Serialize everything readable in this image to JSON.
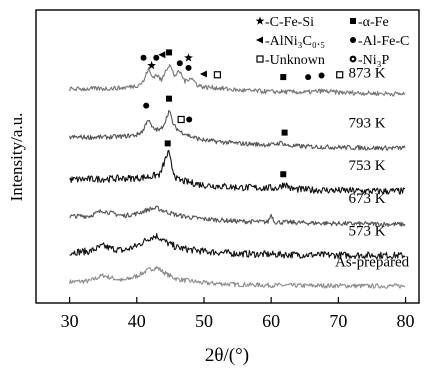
{
  "chart_data": {
    "type": "line",
    "title": "",
    "xlabel": "2θ/(°)",
    "ylabel": "Intensity/a.u.",
    "xlim": [
      25,
      82
    ],
    "xticks": [
      30,
      40,
      50,
      60,
      70,
      80
    ],
    "ylim": [
      0,
      7.6
    ],
    "grid": false,
    "colors": {
      "As-prepared": "#8c8c8c",
      "573 K": "#111111",
      "673 K": "#555555",
      "753 K": "#111111",
      "793 K": "#555555",
      "873 K": "#777777"
    },
    "series": [
      {
        "name": "As-prepared",
        "offset": 0.35,
        "x": [
          30,
          33,
          35,
          36,
          38,
          40,
          42,
          43,
          44.5,
          46,
          48,
          50,
          55,
          60,
          65,
          70,
          75,
          80
        ],
        "y": [
          0.55,
          0.57,
          0.72,
          0.66,
          0.58,
          0.7,
          0.88,
          0.92,
          0.74,
          0.62,
          0.57,
          0.52,
          0.48,
          0.46,
          0.45,
          0.45,
          0.44,
          0.44
        ]
      },
      {
        "name": "573 K",
        "offset": 1.15,
        "x": [
          30,
          33,
          35,
          36,
          38,
          40,
          42,
          43,
          44.5,
          46,
          48,
          50,
          55,
          60,
          65,
          70,
          75,
          80
        ],
        "y": [
          1.32,
          1.34,
          1.48,
          1.42,
          1.36,
          1.48,
          1.7,
          1.74,
          1.56,
          1.44,
          1.38,
          1.34,
          1.28,
          1.26,
          1.25,
          1.24,
          1.24,
          1.23
        ]
      },
      {
        "name": "673 K",
        "offset": 2.0,
        "x": [
          30,
          33,
          35,
          36,
          38,
          40,
          42,
          43,
          44.5,
          46,
          48,
          50,
          55,
          59.5,
          60,
          60.5,
          65,
          70,
          75,
          80
        ],
        "y": [
          2.25,
          2.26,
          2.4,
          2.34,
          2.26,
          2.32,
          2.44,
          2.46,
          2.36,
          2.28,
          2.22,
          2.18,
          2.12,
          2.1,
          2.3,
          2.1,
          2.08,
          2.06,
          2.05,
          2.04
        ]
      },
      {
        "name": "753 K",
        "offset": 2.9,
        "x": [
          30,
          35,
          40,
          42,
          43.5,
          44.2,
          44.7,
          45.3,
          46,
          48,
          50,
          55,
          61,
          62,
          63,
          65,
          70,
          75,
          80
        ],
        "y": [
          3.2,
          3.22,
          3.24,
          3.28,
          3.34,
          3.7,
          3.92,
          3.48,
          3.2,
          3.12,
          3.06,
          3.0,
          2.98,
          3.1,
          2.96,
          2.94,
          2.92,
          2.9,
          2.9
        ]
      },
      {
        "name": "793 K",
        "offset": 4.0,
        "x": [
          30,
          35,
          38,
          40,
          41,
          41.6,
          42.4,
          43.5,
          44.2,
          44.8,
          45.5,
          46.5,
          47.2,
          48,
          50,
          55,
          60,
          61.5,
          62.5,
          65,
          70,
          75,
          80
        ],
        "y": [
          4.3,
          4.3,
          4.32,
          4.36,
          4.48,
          4.78,
          4.52,
          4.48,
          4.7,
          5.0,
          4.6,
          4.44,
          4.4,
          4.32,
          4.22,
          4.14,
          4.1,
          4.16,
          4.08,
          4.06,
          4.04,
          4.02,
          4.02
        ]
      },
      {
        "name": "873 K",
        "offset": 5.2,
        "x": [
          30,
          35,
          38,
          40,
          41,
          41.7,
          42.3,
          43,
          43.7,
          44.3,
          44.9,
          45.6,
          46.4,
          47.2,
          48,
          49,
          50,
          52,
          55,
          60,
          62,
          65,
          67.5,
          70,
          75,
          80
        ],
        "y": [
          5.55,
          5.56,
          5.58,
          5.64,
          5.74,
          6.08,
          5.86,
          5.92,
          5.76,
          6.06,
          6.18,
          5.9,
          6.0,
          5.74,
          5.86,
          5.66,
          5.6,
          5.58,
          5.52,
          5.48,
          5.48,
          5.46,
          5.5,
          5.46,
          5.44,
          5.42
        ]
      }
    ],
    "curve_labels": [
      {
        "text": "As-prepared",
        "x": 69.5,
        "y": 0.95
      },
      {
        "text": "573 K",
        "x": 71.5,
        "y": 1.75
      },
      {
        "text": "673 K",
        "x": 71.5,
        "y": 2.6
      },
      {
        "text": "753 K",
        "x": 71.5,
        "y": 3.45
      },
      {
        "text": "793 K",
        "x": 71.5,
        "y": 4.55
      },
      {
        "text": "873 K",
        "x": 71.5,
        "y": 5.85
      }
    ],
    "phase_legend": [
      {
        "marker": "star",
        "label": "-C-Fe-Si"
      },
      {
        "marker": "square",
        "label": "-α-Fe"
      },
      {
        "marker": "triangle-left",
        "label": "-AlNi₃C₀.₅"
      },
      {
        "marker": "circle",
        "label": "-Al-Fe-C"
      },
      {
        "marker": "square-open",
        "label": "-Unknown"
      },
      {
        "marker": "circle-ring",
        "label": "-Ni₃P"
      }
    ],
    "phase_markers": [
      {
        "marker": "circle",
        "x": 41.0,
        "y": 6.36
      },
      {
        "marker": "star",
        "x": 42.2,
        "y": 6.16
      },
      {
        "marker": "circle",
        "x": 42.9,
        "y": 6.36
      },
      {
        "marker": "triangle-left",
        "x": 43.8,
        "y": 6.44
      },
      {
        "marker": "square",
        "x": 44.8,
        "y": 6.5
      },
      {
        "marker": "circle",
        "x": 46.4,
        "y": 6.22
      },
      {
        "marker": "star",
        "x": 47.7,
        "y": 6.36
      },
      {
        "marker": "circle",
        "x": 47.7,
        "y": 6.1
      },
      {
        "marker": "triangle-left",
        "x": 50.0,
        "y": 5.94
      },
      {
        "marker": "square-open",
        "x": 52.0,
        "y": 5.92
      },
      {
        "marker": "square",
        "x": 61.8,
        "y": 5.86
      },
      {
        "marker": "circle",
        "x": 65.5,
        "y": 5.86
      },
      {
        "marker": "circle",
        "x": 67.5,
        "y": 5.9
      },
      {
        "marker": "square-open",
        "x": 70.2,
        "y": 5.92
      },
      {
        "marker": "circle",
        "x": 41.4,
        "y": 5.12
      },
      {
        "marker": "square",
        "x": 44.8,
        "y": 5.3
      },
      {
        "marker": "square-open",
        "x": 46.6,
        "y": 4.76
      },
      {
        "marker": "circle",
        "x": 47.8,
        "y": 4.76
      },
      {
        "marker": "square",
        "x": 62.0,
        "y": 4.42
      },
      {
        "marker": "square",
        "x": 44.6,
        "y": 4.14
      },
      {
        "marker": "square",
        "x": 61.8,
        "y": 3.34
      }
    ]
  }
}
